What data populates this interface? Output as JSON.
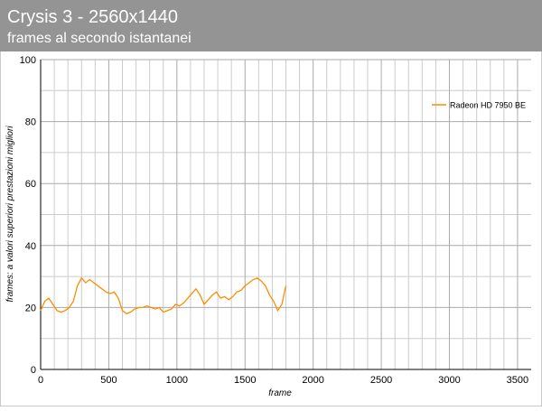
{
  "chart_data": {
    "type": "line",
    "title": "Crysis 3 - 2560x1440",
    "subtitle": "frames al secondo istantanei",
    "x_label": "frame",
    "y_label": "frames: a valori superiori prestazioni migliori",
    "x": [
      0,
      30,
      60,
      90,
      120,
      150,
      180,
      210,
      240,
      270,
      300,
      330,
      360,
      390,
      420,
      450,
      480,
      510,
      540,
      570,
      600,
      630,
      660,
      690,
      720,
      750,
      780,
      810,
      840,
      870,
      900,
      930,
      960,
      990,
      1020,
      1050,
      1080,
      1110,
      1140,
      1170,
      1200,
      1230,
      1260,
      1290,
      1320,
      1350,
      1380,
      1410,
      1440,
      1470,
      1500,
      1530,
      1560,
      1590,
      1620,
      1650,
      1680,
      1710,
      1740,
      1770,
      1800
    ],
    "series": [
      {
        "name": "Radeon HD 7950 BE",
        "color": "#ff8c00",
        "values": [
          19,
          22,
          23,
          21,
          19,
          18.5,
          19,
          20,
          22,
          27,
          29.5,
          28,
          29,
          28,
          27,
          26,
          25,
          24.5,
          25,
          23,
          19,
          18,
          18.5,
          19.5,
          20,
          20,
          20.5,
          20,
          19.5,
          20,
          18.5,
          19,
          19.5,
          21,
          20.5,
          21.5,
          23,
          24.5,
          26,
          24,
          21,
          22.5,
          24,
          25,
          23,
          23.5,
          22.5,
          23.5,
          25,
          25.5,
          27,
          28,
          29,
          29.5,
          28.5,
          27,
          24,
          22,
          19,
          21,
          27
        ]
      }
    ],
    "xlim": [
      0,
      3600
    ],
    "xticks": [
      0,
      500,
      1000,
      1500,
      2000,
      2500,
      3000,
      3500
    ],
    "ylim": [
      0,
      100
    ],
    "yticks": [
      0,
      20,
      40,
      60,
      80,
      100
    ],
    "grid": true,
    "legend": "top-right"
  }
}
